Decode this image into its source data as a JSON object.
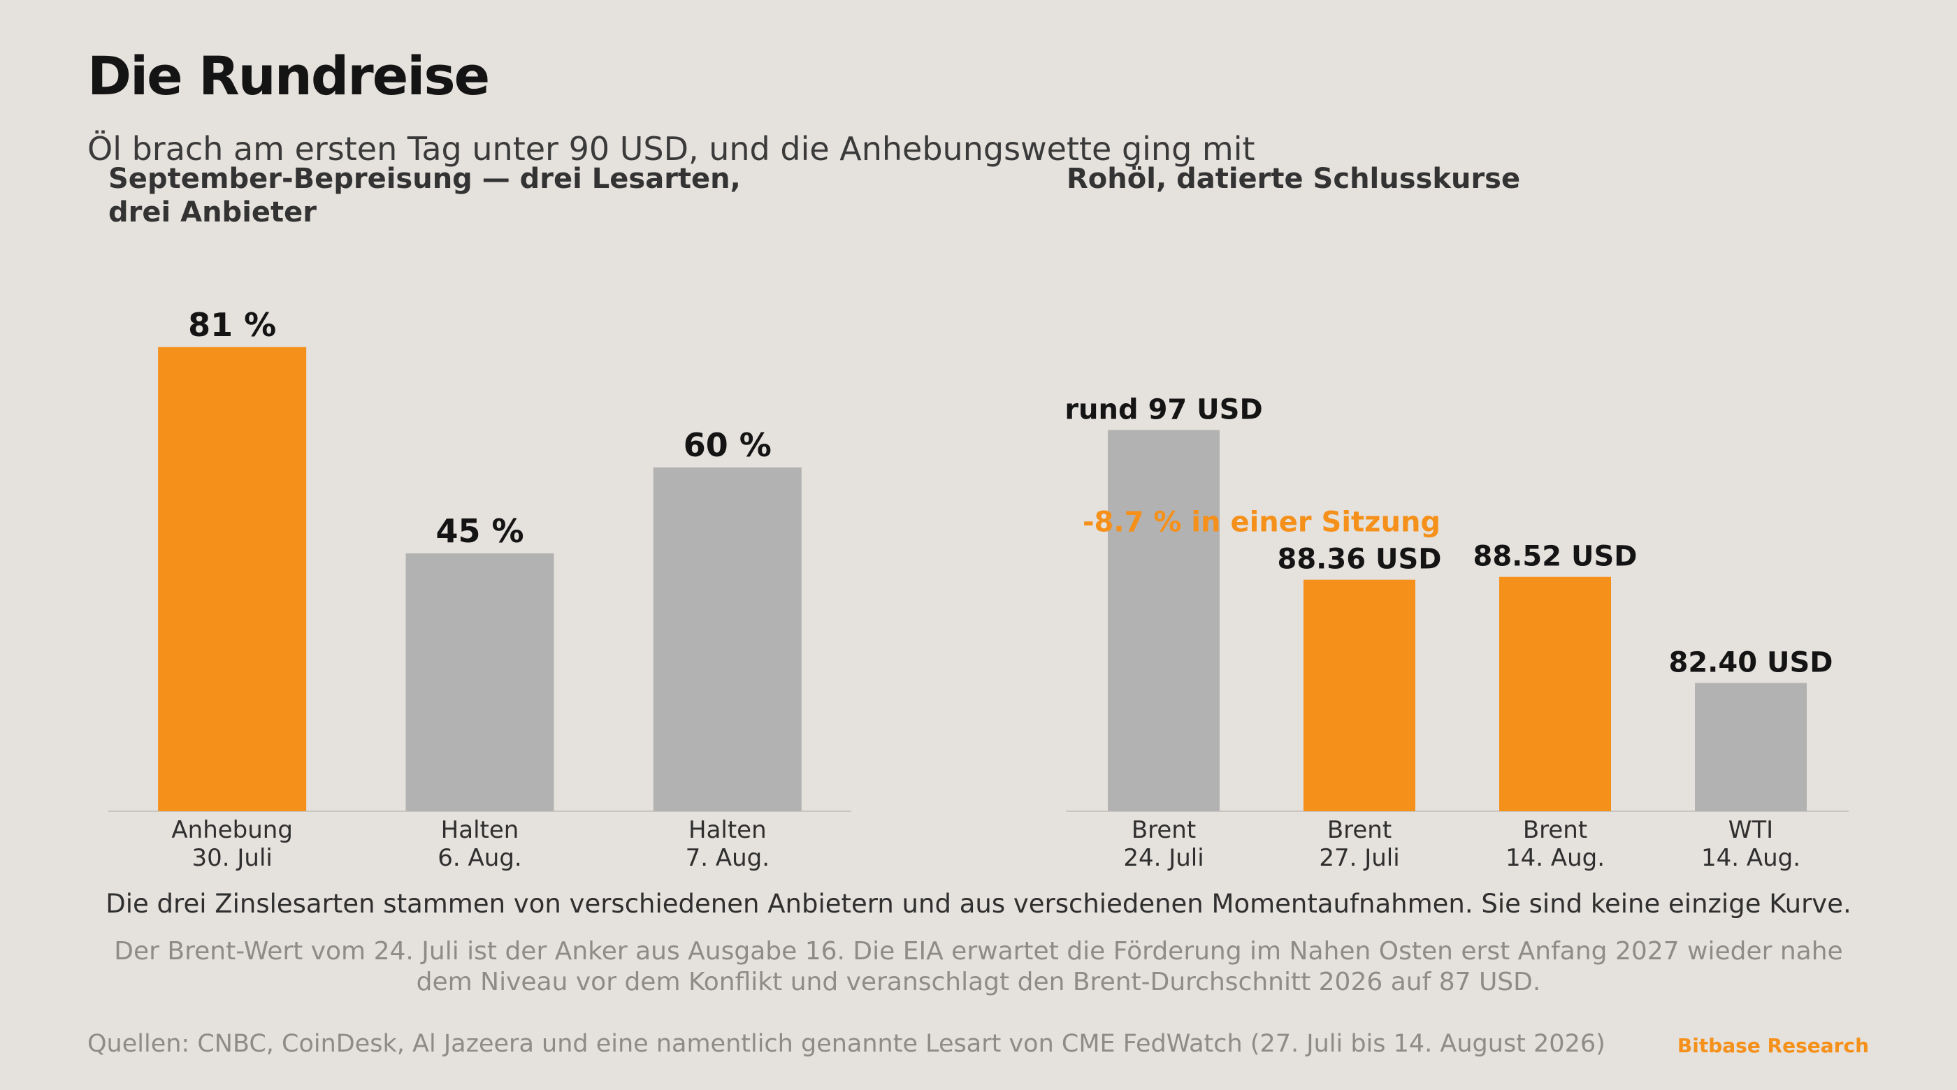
{
  "title": "Die Rundreise",
  "subtitle": "Öl brach am ersten Tag unter 90 USD, und die Anhebungswette ging mit",
  "colors": {
    "accent": "#f5901a",
    "neutral": "#b2b2b2",
    "background": "#e5e1dc"
  },
  "chart_data": [
    {
      "type": "bar",
      "title": "September-Bepreisung — drei Lesarten, drei Anbieter",
      "categories": [
        [
          "Anhebung",
          "30. Juli"
        ],
        [
          "Halten",
          "6. Aug."
        ],
        [
          "Halten",
          "7. Aug."
        ]
      ],
      "values": [
        81,
        45,
        60
      ],
      "value_labels": [
        "81 %",
        "45 %",
        "60 %"
      ],
      "highlight": [
        true,
        false,
        false
      ],
      "unit": "%",
      "ylim": [
        0,
        100
      ],
      "grid": false,
      "legend": "none"
    },
    {
      "type": "bar",
      "title": "Rohöl, datierte Schlusskurse",
      "categories": [
        [
          "Brent",
          "24. Juli"
        ],
        [
          "Brent",
          "27. Juli"
        ],
        [
          "Brent",
          "14. Aug."
        ],
        [
          "WTI",
          "14. Aug."
        ]
      ],
      "values": [
        97,
        88.36,
        88.52,
        82.4
      ],
      "value_labels": [
        "rund 97 USD",
        "88.36 USD",
        "88.52 USD",
        "82.40 USD"
      ],
      "highlight": [
        false,
        true,
        true,
        false
      ],
      "unit": "USD",
      "ylim": [
        75,
        100
      ],
      "annotation": "-8.7 % in einer Sitzung",
      "grid": false,
      "legend": "none"
    }
  ],
  "notes": {
    "main": "Die drei Zinslesarten stammen von verschiedenen Anbietern und aus verschiedenen Momentaufnahmen. Sie sind keine einzige Kurve.",
    "secondary": "Der Brent-Wert vom 24. Juli ist der Anker aus Ausgabe 16. Die EIA erwartet die Förderung im Nahen Osten erst Anfang 2027 wieder nahe dem Niveau vor dem Konflikt und veranschlagt den Brent-Durchschnitt 2026 auf 87 USD."
  },
  "footer": {
    "sources": "Quellen: CNBC, CoinDesk, Al Jazeera und eine namentlich genannte Lesart von CME FedWatch (27. Juli bis 14. August 2026)",
    "brand": "Bitbase Research"
  }
}
